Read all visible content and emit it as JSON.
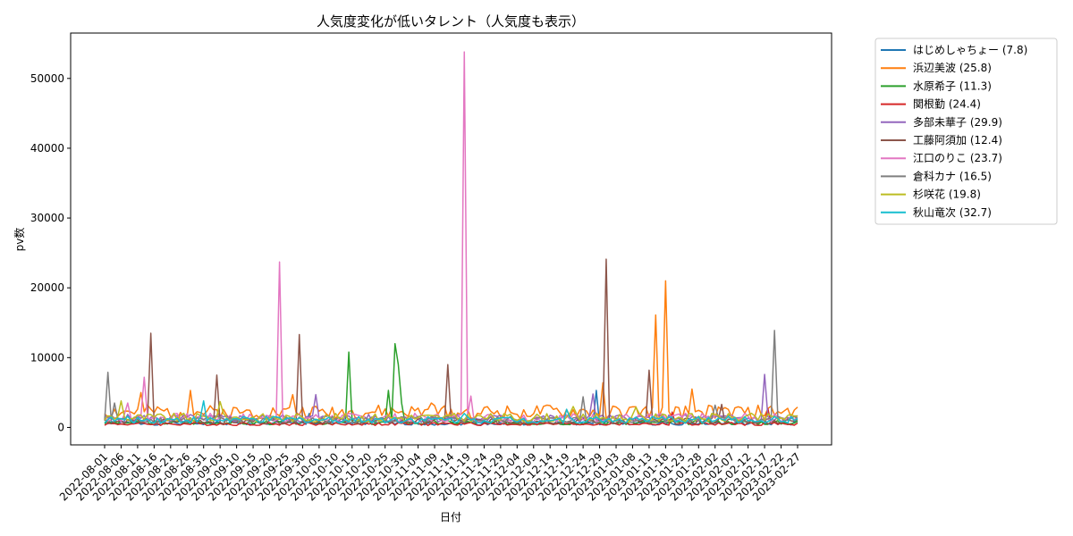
{
  "chart_data": {
    "type": "line",
    "title": "人気度変化が低いタレント（人気度も表示）",
    "xlabel": "日付",
    "ylabel": "pv数",
    "ylim": [
      -2500,
      56500
    ],
    "yticks": [
      0,
      10000,
      20000,
      30000,
      40000,
      50000
    ],
    "xticks": [
      "2022-08-01",
      "2022-08-06",
      "2022-08-11",
      "2022-08-16",
      "2022-08-21",
      "2022-08-26",
      "2022-08-31",
      "2022-09-05",
      "2022-09-10",
      "2022-09-15",
      "2022-09-20",
      "2022-09-25",
      "2022-09-30",
      "2022-10-05",
      "2022-10-10",
      "2022-10-15",
      "2022-10-20",
      "2022-10-25",
      "2022-10-30",
      "2022-11-04",
      "2022-11-09",
      "2022-11-14",
      "2022-11-19",
      "2022-11-24",
      "2022-11-29",
      "2022-12-04",
      "2022-12-09",
      "2022-12-14",
      "2022-12-19",
      "2022-12-24",
      "2022-12-29",
      "2023-01-03",
      "2023-01-08",
      "2023-01-13",
      "2023-01-18",
      "2023-01-23",
      "2023-01-28",
      "2023-02-02",
      "2023-02-07",
      "2023-02-12",
      "2023-02-17",
      "2023-02-22",
      "2023-02-27"
    ],
    "x_start": "2022-08-01",
    "x_end": "2023-02-27",
    "grid": false,
    "legend_position": "outside-right",
    "series": [
      {
        "name": "はじめしゃちょー (7.8)",
        "color": "#1f77b4",
        "base": 600,
        "peaks": [
          [
            "2022-12-28",
            5300
          ],
          [
            "2022-10-02",
            2000
          ]
        ]
      },
      {
        "name": "浜辺美波 (25.8)",
        "color": "#ff7f0e",
        "base": 2200,
        "peaks": [
          [
            "2022-08-12",
            5000
          ],
          [
            "2022-08-27",
            5300
          ],
          [
            "2022-09-27",
            4700
          ],
          [
            "2022-11-08",
            3500
          ],
          [
            "2022-12-30",
            6400
          ],
          [
            "2023-01-15",
            16100
          ],
          [
            "2023-01-18",
            21000
          ],
          [
            "2023-01-26",
            5500
          ]
        ]
      },
      {
        "name": "水原希子 (11.3)",
        "color": "#2ca02c",
        "base": 700,
        "peaks": [
          [
            "2022-10-14",
            10800
          ],
          [
            "2022-10-26",
            5300
          ],
          [
            "2022-10-28",
            12000
          ],
          [
            "2022-10-29",
            9000
          ],
          [
            "2022-10-30",
            3500
          ]
        ]
      },
      {
        "name": "関根勤 (24.4)",
        "color": "#d62728",
        "base": 500,
        "peaks": [
          [
            "2023-02-18",
            2700
          ],
          [
            "2023-01-20",
            2200
          ]
        ]
      },
      {
        "name": "多部未華子 (29.9)",
        "color": "#9467bd",
        "base": 1300,
        "peaks": [
          [
            "2022-10-04",
            4700
          ],
          [
            "2022-12-27",
            4800
          ],
          [
            "2023-02-17",
            7600
          ]
        ]
      },
      {
        "name": "工藤阿須加 (12.4)",
        "color": "#8c564b",
        "base": 900,
        "peaks": [
          [
            "2022-08-15",
            13500
          ],
          [
            "2022-09-04",
            7500
          ],
          [
            "2022-09-29",
            13300
          ],
          [
            "2022-11-13",
            9000
          ],
          [
            "2022-12-31",
            24100
          ],
          [
            "2023-01-13",
            8200
          ],
          [
            "2023-02-04",
            3300
          ]
        ]
      },
      {
        "name": "江口のりこ (23.7)",
        "color": "#e377c2",
        "base": 1400,
        "peaks": [
          [
            "2022-08-08",
            3500
          ],
          [
            "2022-08-13",
            7200
          ],
          [
            "2022-09-23",
            23700
          ],
          [
            "2022-11-18",
            53800
          ],
          [
            "2022-11-20",
            4500
          ]
        ]
      },
      {
        "name": "倉科カナ (16.5)",
        "color": "#7f7f7f",
        "base": 1100,
        "peaks": [
          [
            "2022-08-02",
            7900
          ],
          [
            "2022-08-04",
            3500
          ],
          [
            "2022-12-24",
            4400
          ],
          [
            "2023-02-20",
            13900
          ],
          [
            "2023-02-02",
            3200
          ]
        ]
      },
      {
        "name": "杉咲花 (19.8)",
        "color": "#bcbd22",
        "base": 1400,
        "peaks": [
          [
            "2022-08-06",
            3800
          ],
          [
            "2022-09-05",
            3700
          ],
          [
            "2022-12-21",
            3000
          ],
          [
            "2023-01-09",
            2900
          ]
        ]
      },
      {
        "name": "秋山竜次 (32.7)",
        "color": "#17becf",
        "base": 1100,
        "peaks": [
          [
            "2022-08-31",
            3800
          ],
          [
            "2022-11-18",
            2000
          ],
          [
            "2022-12-19",
            2600
          ]
        ]
      }
    ]
  }
}
